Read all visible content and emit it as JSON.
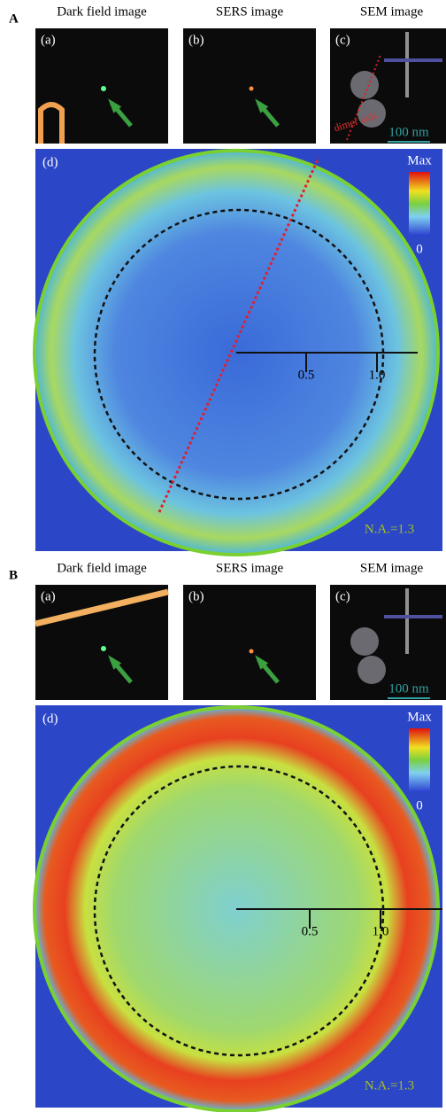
{
  "panels": [
    {
      "label": "A",
      "headers": [
        "Dark field image",
        "SERS image",
        "SEM image"
      ],
      "image_labels": [
        "(a)",
        "(b)",
        "(c)"
      ],
      "sem_axis_label": "dimer axis",
      "scale_bar": "100 nm",
      "map_label": "(d)",
      "colorbar": {
        "max": "Max",
        "min": "0"
      },
      "radial_ticks": [
        "0.5",
        "1.0"
      ],
      "aperture": "N.A.=1.3"
    },
    {
      "label": "B",
      "headers": [
        "Dark field image",
        "SERS image",
        "SEM image"
      ],
      "image_labels": [
        "(a)",
        "(b)",
        "(c)"
      ],
      "scale_bar": "100 nm",
      "map_label": "(d)",
      "colorbar": {
        "max": "Max",
        "min": "0"
      },
      "radial_ticks": [
        "0.5",
        "1.0"
      ],
      "aperture": "N.A.=1.3"
    }
  ]
}
